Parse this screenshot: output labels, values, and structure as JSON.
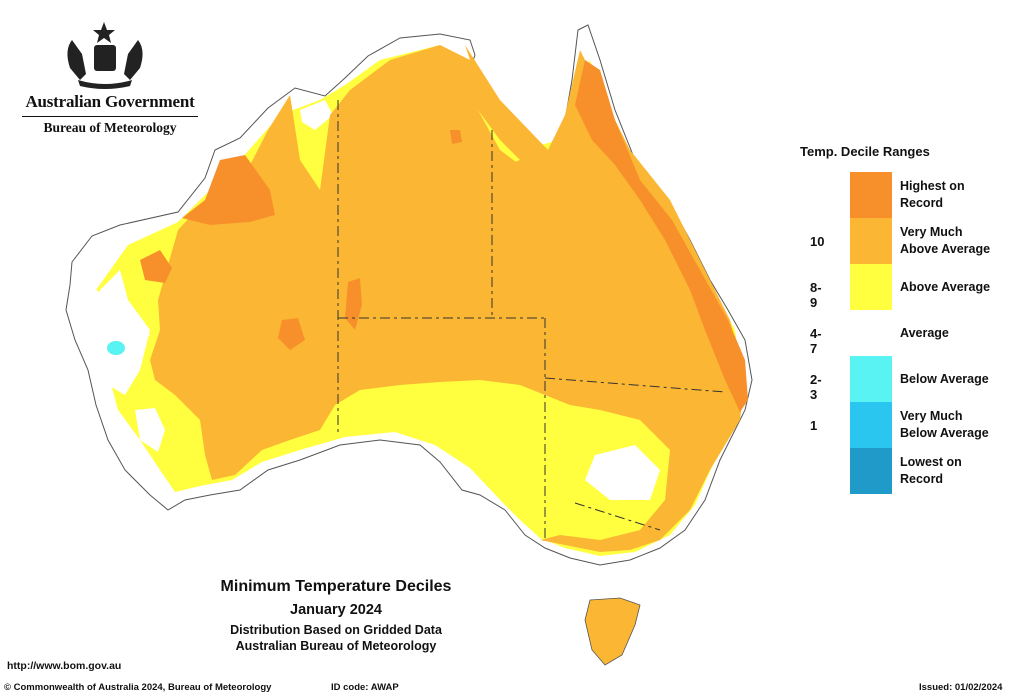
{
  "header": {
    "government": "Australian Government",
    "bureau": "Bureau of Meteorology"
  },
  "legend": {
    "title": "Temp. Decile Ranges",
    "items": [
      {
        "code": "",
        "label": "Highest on\nRecord",
        "color": "#f7902b"
      },
      {
        "code": "10",
        "label": "Very Much\nAbove Average",
        "color": "#fbb733"
      },
      {
        "code": "8-9",
        "label": "Above Average",
        "color": "#ffff40"
      },
      {
        "code": "4-7",
        "label": "Average",
        "color": "#ffffff"
      },
      {
        "code": "2-3",
        "label": "Below Average",
        "color": "#5af3f3"
      },
      {
        "code": "1",
        "label": "Very Much\nBelow Average",
        "color": "#2bc6f0"
      },
      {
        "code": "",
        "label": "Lowest on\nRecord",
        "color": "#1f9ac9"
      }
    ]
  },
  "caption": {
    "title": "Minimum Temperature Deciles",
    "period": "January 2024",
    "line1": "Distribution Based on Gridded Data",
    "line2": "Australian Bureau of Meteorology"
  },
  "url": "http://www.bom.gov.au",
  "footer": {
    "copyright": "© Commonwealth of Australia 2024, Bureau of Meteorology",
    "id_code": "ID code: AWAP",
    "issued": "Issued: 01/02/2024"
  }
}
